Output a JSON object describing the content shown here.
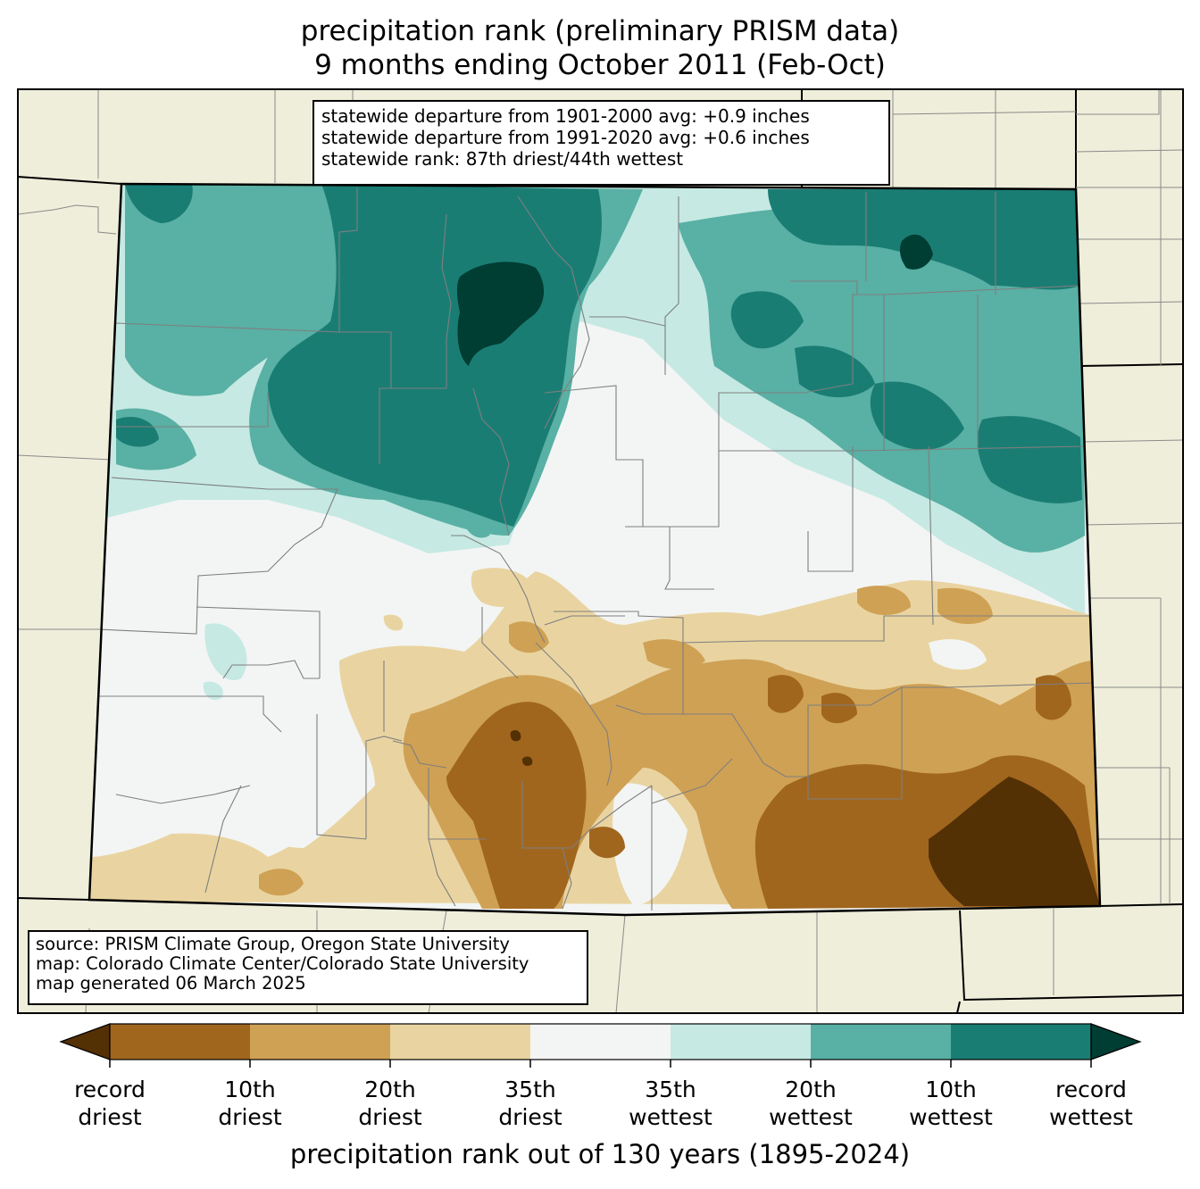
{
  "title": {
    "line1": "precipitation rank (preliminary PRISM data)",
    "line2": "9 months ending October 2011 (Feb-Oct)"
  },
  "stats": {
    "line1": "statewide departure from 1901-2000 avg: +0.9 inches",
    "line2": "statewide departure from 1991-2020 avg: +0.6 inches",
    "line3": "statewide rank: 87th driest/44th wettest"
  },
  "source": {
    "line1": "source: PRISM Climate Group, Oregon State University",
    "line2": "map: Colorado Climate Center/Colorado State University",
    "line3": "map generated 06 March 2025"
  },
  "colorbar": {
    "title": "precipitation rank out of 130 years (1895-2024)",
    "labels": [
      {
        "l1": "record",
        "l2": "driest"
      },
      {
        "l1": "10th",
        "l2": "driest"
      },
      {
        "l1": "20th",
        "l2": "driest"
      },
      {
        "l1": "35th",
        "l2": "driest"
      },
      {
        "l1": "35th",
        "l2": "wettest"
      },
      {
        "l1": "20th",
        "l2": "wettest"
      },
      {
        "l1": "10th",
        "l2": "wettest"
      },
      {
        "l1": "record",
        "l2": "wettest"
      }
    ],
    "colors": {
      "record_driest": "#543005",
      "driest_1_10": "#a0661e",
      "driest_10_20": "#cfa155",
      "driest_20_35": "#e9d4a1",
      "normal": "#f3f5f4",
      "wettest_35_20": "#c6e9e3",
      "wettest_20_10": "#59b0a4",
      "wettest_10_1": "#1a7d74",
      "record_wettest": "#003d32"
    }
  },
  "map_colors": {
    "neighbor_land": "#efeedb",
    "state_border": "#000000",
    "county_lines": "#808080"
  }
}
